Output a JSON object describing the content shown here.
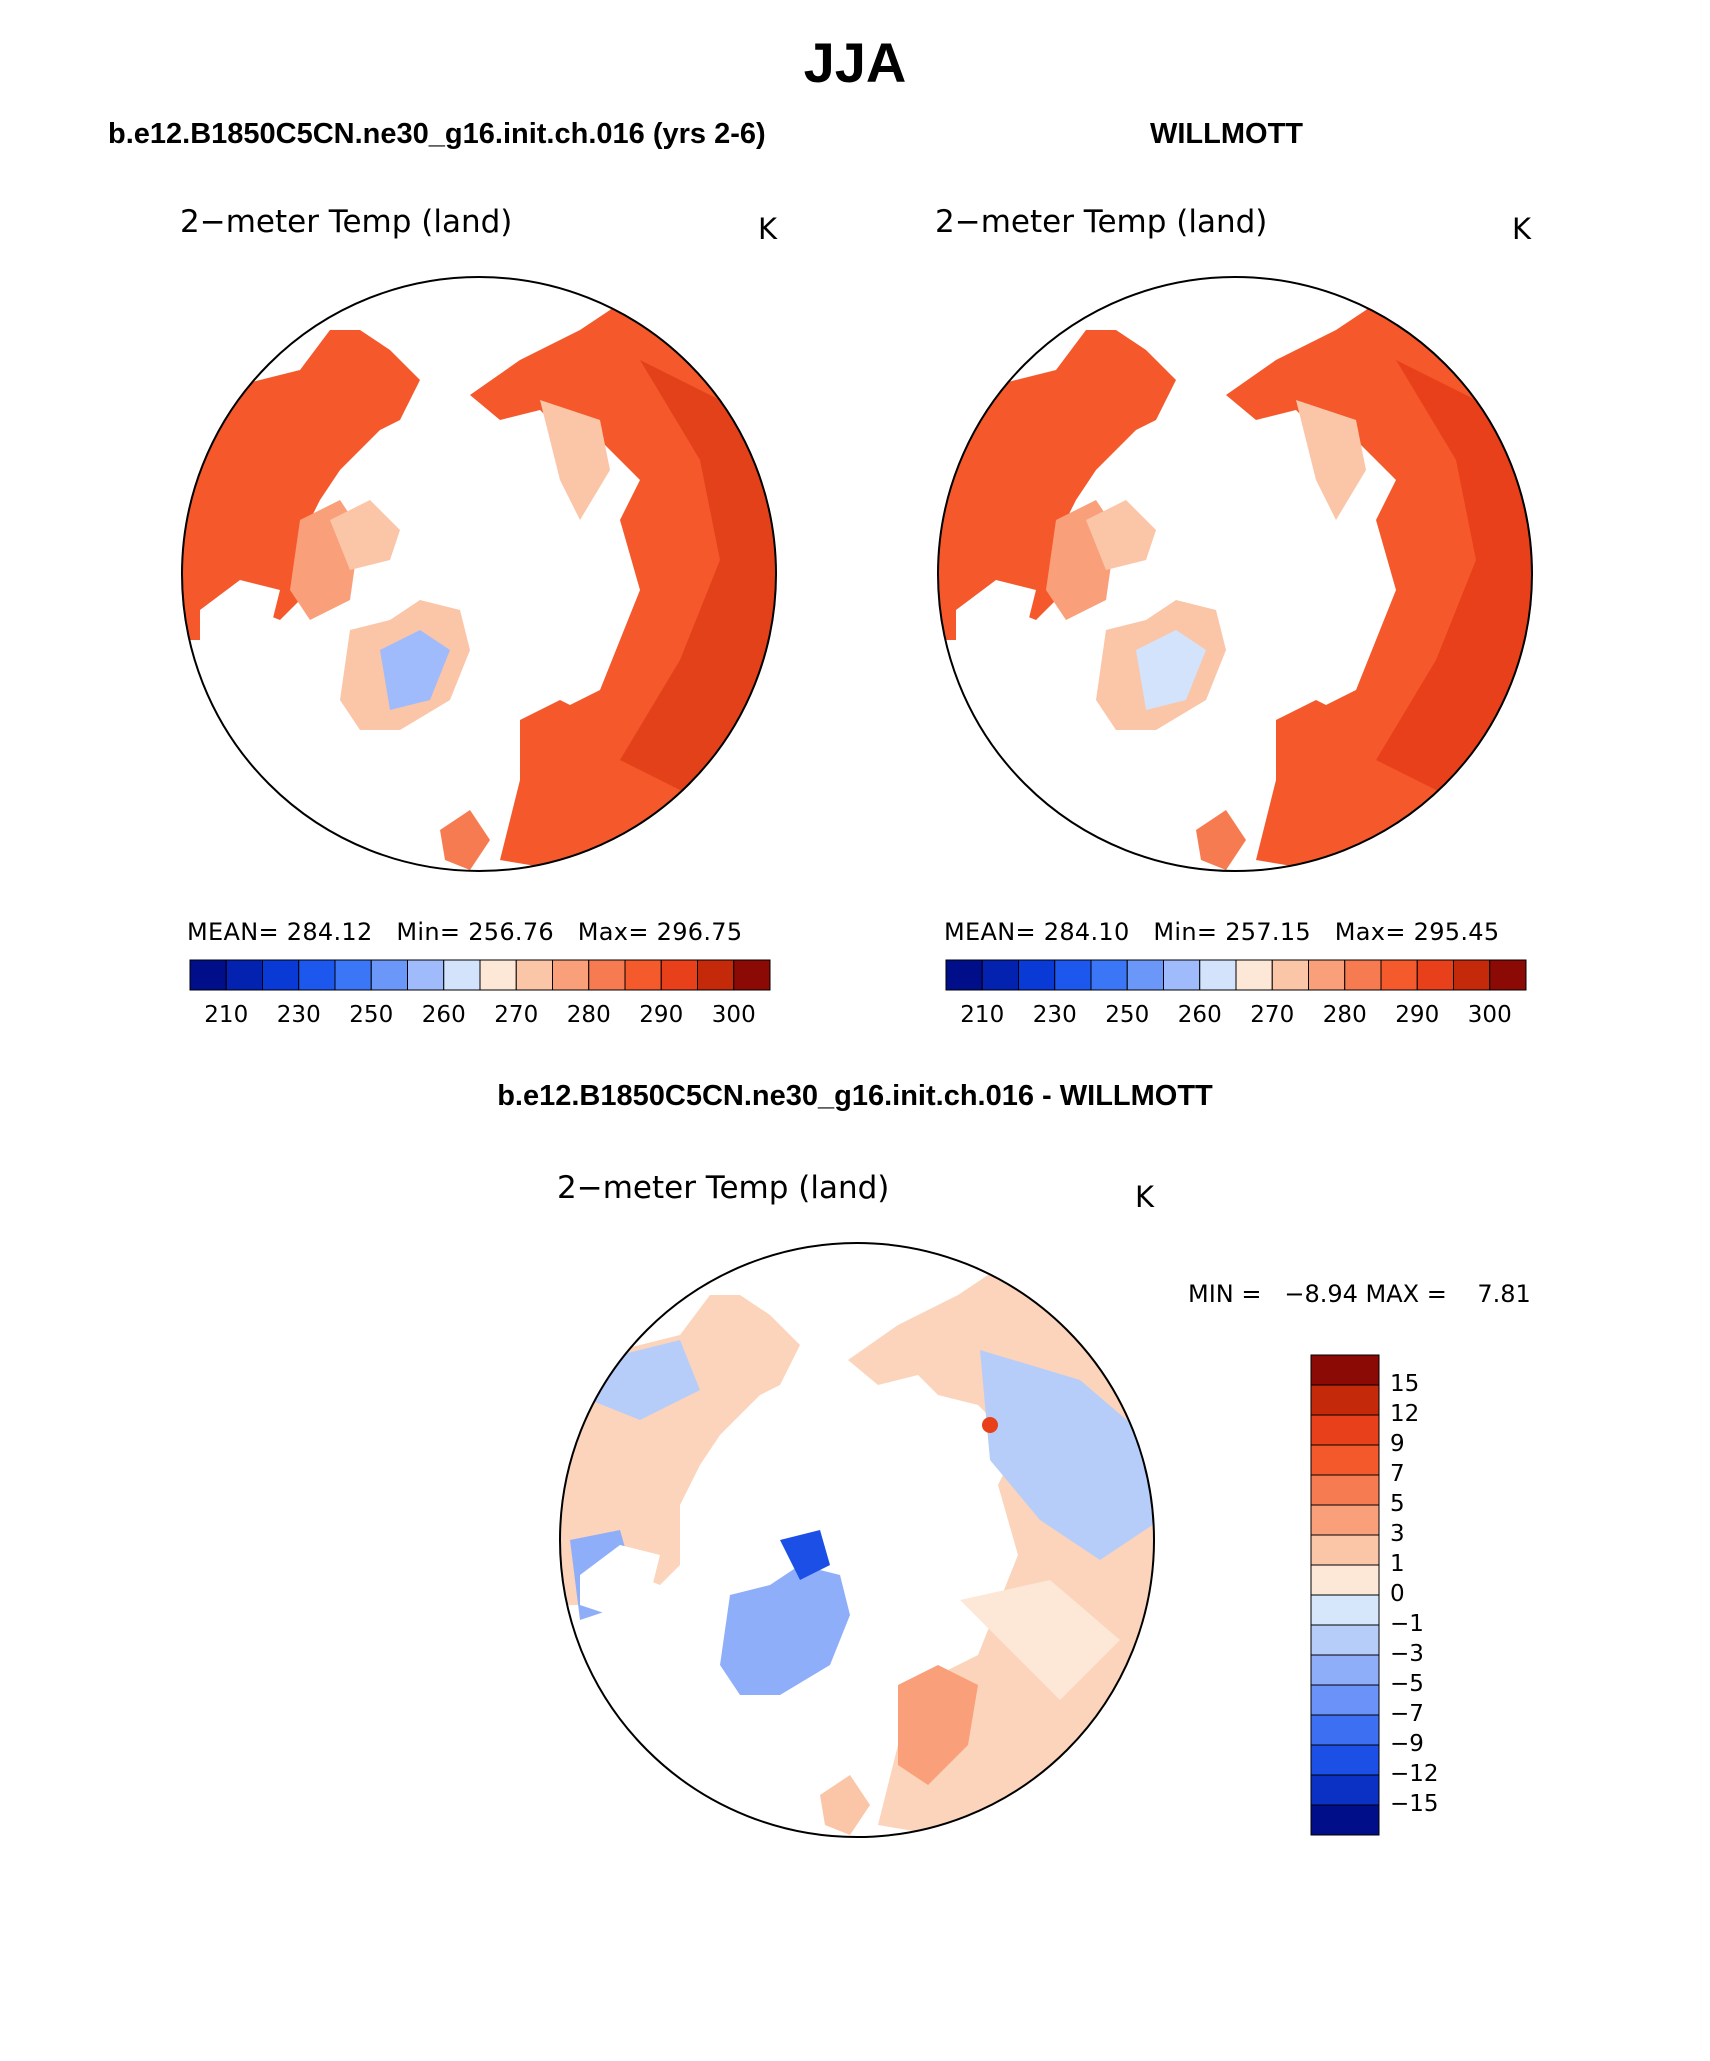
{
  "figure": {
    "season": "JJA"
  },
  "panels": [
    {
      "id": "model",
      "case_title": "b.e12.B1850C5CN.ne30_g16.init.ch.016 (yrs 2-6)",
      "plot_title": "2−meter Temp (land)",
      "units": "K",
      "stats": {
        "mean_label": "MEAN=",
        "mean": "284.12",
        "min_label": "Min=",
        "min": "256.76",
        "max_label": "Max=",
        "max": "296.75"
      }
    },
    {
      "id": "obs",
      "case_title": "WILLMOTT",
      "plot_title": "2−meter Temp (land)",
      "units": "K",
      "stats": {
        "mean_label": "MEAN=",
        "mean": "284.10",
        "min_label": "Min=",
        "min": "257.15",
        "max_label": "Max=",
        "max": "295.45"
      }
    }
  ],
  "abs_colorbar": {
    "colors": [
      "#000e8a",
      "#0422b0",
      "#0a3ad6",
      "#1d58ee",
      "#3b76f7",
      "#6b97f9",
      "#9fbbfb",
      "#d2e3fb",
      "#fde8d8",
      "#fbc5a8",
      "#f9a07a",
      "#f77b50",
      "#f45a2c",
      "#e8401a",
      "#c42a0a",
      "#8c0a05"
    ],
    "labels": [
      "210",
      "230",
      "250",
      "260",
      "270",
      "280",
      "290",
      "300"
    ]
  },
  "diff_panel": {
    "title": "b.e12.B1850C5CN.ne30_g16.init.ch.016 - WILLMOTT",
    "plot_title": "2−meter Temp (land)",
    "units": "K",
    "stats": "MIN =   −8.94 MAX =    7.81"
  },
  "diff_colorbar": {
    "colors": [
      "#8c0a05",
      "#c42a0a",
      "#e8401a",
      "#f4592b",
      "#f77b50",
      "#f9a07a",
      "#fbc5a8",
      "#fde8d8",
      "#d6e6fb",
      "#b6cdfa",
      "#8faefa",
      "#6a92f8",
      "#3d6ff3",
      "#1c4fe6",
      "#0a30c4",
      "#000e8a"
    ],
    "labels": [
      "15",
      "12",
      "9",
      "7",
      "5",
      "3",
      "1",
      "0",
      "−1",
      "−3",
      "−5",
      "−7",
      "−9",
      "−12",
      "−15"
    ]
  }
}
